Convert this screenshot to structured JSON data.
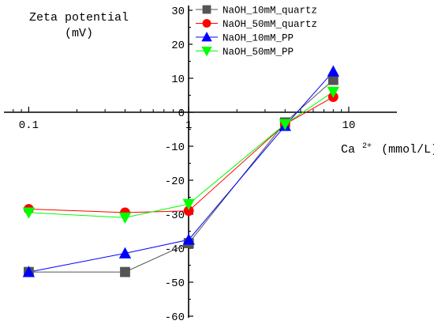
{
  "chart_data": {
    "type": "line",
    "title": "",
    "ylabel_lines": [
      "Zeta potential",
      "(mV)"
    ],
    "xlabel": "Ca",
    "xlabel_sup": "2+",
    "xlabel_unit": "(mmol/L)",
    "xscale": "log",
    "xlim": [
      0.07,
      20
    ],
    "ylim": [
      -60,
      30
    ],
    "x_ticks": [
      0.1,
      1,
      10
    ],
    "x_tick_labels": [
      "0.1",
      "1",
      "10"
    ],
    "y_ticks": [
      30,
      20,
      10,
      0,
      -10,
      -20,
      -30,
      -40,
      -50,
      -60
    ],
    "y_tick_labels": [
      "30",
      "20",
      "10",
      "0",
      "-10",
      "-20",
      "-30",
      "-40",
      "-50",
      "-60"
    ],
    "grid": false,
    "legend_position": "top-right",
    "series": [
      {
        "name": "NaOH_10mM_quartz",
        "color": "#555555",
        "marker": "square",
        "x": [
          0.1,
          0.4,
          1,
          4,
          8
        ],
        "y": [
          -47,
          -47,
          -38.5,
          -3,
          9.5
        ]
      },
      {
        "name": "NaOH_50mM_quartz",
        "color": "#ff0000",
        "marker": "circle",
        "x": [
          0.1,
          0.4,
          1,
          4,
          8
        ],
        "y": [
          -28.5,
          -29.5,
          -29,
          -3.5,
          4.5
        ]
      },
      {
        "name": "NaOH_10mM_PP",
        "color": "#0000ff",
        "marker": "triangle-up",
        "x": [
          0.1,
          0.4,
          1,
          4,
          8
        ],
        "y": [
          -47,
          -41.5,
          -37.5,
          -4,
          12
        ]
      },
      {
        "name": "NaOH_50mM_PP",
        "color": "#00ff00",
        "marker": "triangle-down",
        "x": [
          0.1,
          0.4,
          1,
          4,
          8
        ],
        "y": [
          -29.5,
          -31,
          -27,
          -3.5,
          6
        ]
      }
    ]
  }
}
